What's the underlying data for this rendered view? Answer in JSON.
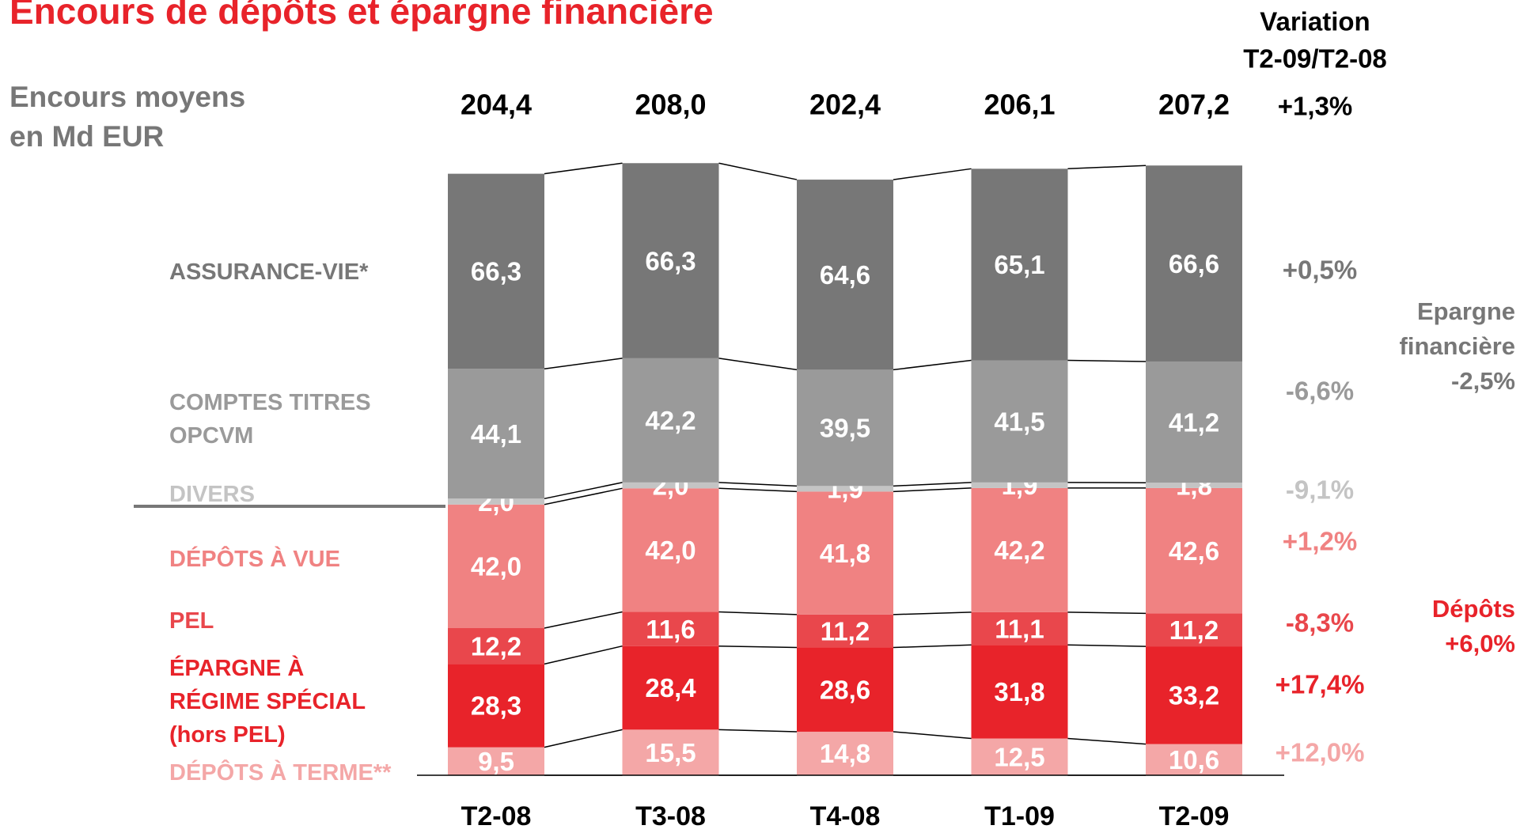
{
  "chart_data": {
    "type": "stacked_bar",
    "title": "Encours de dépôts et épargne financière",
    "subtitle": "Encours moyens\nen Md EUR",
    "variation_header": [
      "Variation",
      "T2-09/T2-08"
    ],
    "categories": [
      "T2-08",
      "T3-08",
      "T4-08",
      "T1-09",
      "T2-09"
    ],
    "totals": [
      204.4,
      208.0,
      202.4,
      206.1,
      207.2
    ],
    "total_labels": [
      "204,4",
      "208,0",
      "202,4",
      "206,1",
      "207,2"
    ],
    "total_variation": "+1,3%",
    "series": [
      {
        "name": "DÉPÔTS À TERME**",
        "color": "#f4a7a7",
        "values": [
          9.5,
          15.5,
          14.8,
          12.5,
          10.6
        ],
        "value_labels": [
          "9,5",
          "15,5",
          "14,8",
          "12,5",
          "10,6"
        ],
        "variation": "+12,0%"
      },
      {
        "name": "ÉPARGNE À\nRÉGIME SPÉCIAL\n(hors PEL)",
        "color": "#e8232a",
        "values": [
          28.3,
          28.4,
          28.6,
          31.8,
          33.2
        ],
        "value_labels": [
          "28,3",
          "28,4",
          "28,6",
          "31,8",
          "33,2"
        ],
        "variation": "+17,4%"
      },
      {
        "name": "PEL",
        "color": "#e9474c",
        "values": [
          12.2,
          11.6,
          11.2,
          11.1,
          11.2
        ],
        "value_labels": [
          "12,2",
          "11,6",
          "11,2",
          "11,1",
          "11,2"
        ],
        "variation": "-8,3%"
      },
      {
        "name": "DÉPÔTS À VUE",
        "color": "#f08282",
        "values": [
          42.0,
          42.0,
          41.8,
          42.2,
          42.6
        ],
        "value_labels": [
          "42,0",
          "42,0",
          "41,8",
          "42,2",
          "42,6"
        ],
        "variation": "+1,2%"
      },
      {
        "name": "DIVERS",
        "color": "#c4c4c4",
        "values": [
          2.0,
          2.0,
          1.9,
          1.9,
          1.8
        ],
        "value_labels": [
          "2,0",
          "2,0",
          "1,9",
          "1,9",
          "1,8"
        ],
        "variation": "-9,1%"
      },
      {
        "name": "COMPTES TITRES\nOPCVM",
        "color": "#9a9a9a",
        "values": [
          44.1,
          42.2,
          39.5,
          41.5,
          41.2
        ],
        "value_labels": [
          "44,1",
          "42,2",
          "39,5",
          "41,5",
          "41,2"
        ],
        "variation": "-6,6%"
      },
      {
        "name": "ASSURANCE-VIE*",
        "color": "#777777",
        "values": [
          66.3,
          66.3,
          64.6,
          65.1,
          66.6
        ],
        "value_labels": [
          "66,3",
          "66,3",
          "64,6",
          "65,1",
          "66,6"
        ],
        "variation": "+0,5%"
      }
    ],
    "groups": [
      {
        "label": "Epargne\nfinancière\n-2,5%",
        "color": "#777777"
      },
      {
        "label": "Dépôts\n+6,0%",
        "color": "#e8232a"
      }
    ]
  }
}
